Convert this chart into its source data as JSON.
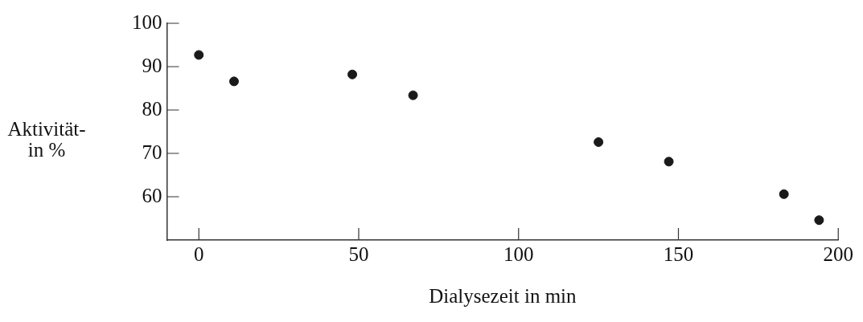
{
  "chart_data": {
    "type": "scatter",
    "xlabel": "Dialysezeit in min",
    "ylabel": "Aktivität-\nin %",
    "x": [
      0,
      11,
      48,
      67,
      125,
      147,
      183,
      194
    ],
    "values": [
      92.7,
      86.6,
      88.2,
      83.4,
      72.6,
      68.1,
      60.6,
      54.6
    ],
    "color": "#1a1a1a",
    "marker": "circle",
    "xlim": [
      -10,
      200
    ],
    "xticks": [
      0,
      50,
      100,
      150,
      200
    ],
    "ylim": [
      50,
      100
    ],
    "yticks": [
      60,
      70,
      80,
      90,
      100
    ],
    "grid": false,
    "legend": false
  }
}
